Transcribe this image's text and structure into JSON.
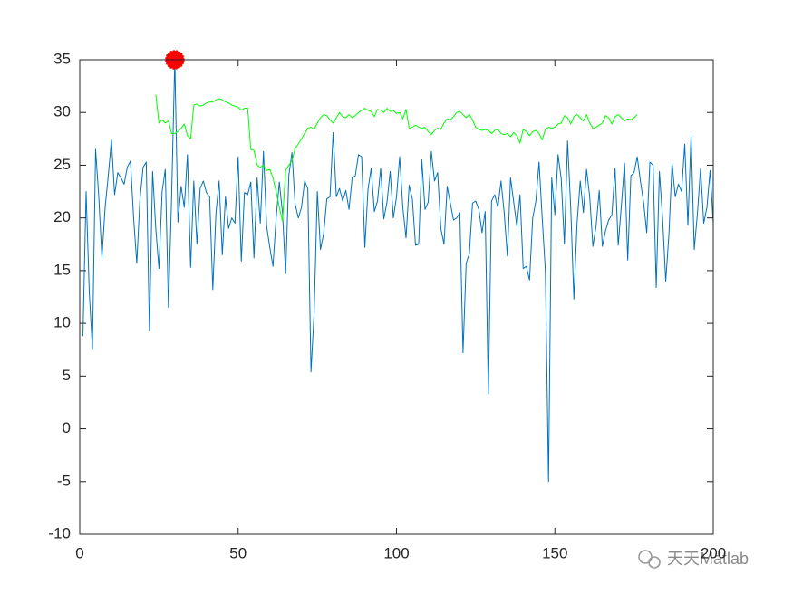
{
  "chart_data": {
    "type": "line",
    "xlim": [
      0,
      200
    ],
    "xticks": [
      0,
      50,
      100,
      150,
      200
    ],
    "ylim": [
      -10,
      35
    ],
    "yticks": [
      -10,
      -5,
      0,
      5,
      10,
      15,
      20,
      25,
      30,
      35
    ],
    "grid": false,
    "watermark": "天天Matlab",
    "series": [
      {
        "color": "#0072bd",
        "marker": false,
        "x": [
          1,
          2,
          3,
          4,
          5,
          6,
          7,
          8,
          9,
          10,
          11,
          12,
          13,
          14,
          15,
          16,
          17,
          18,
          19,
          20,
          21,
          22,
          23,
          24,
          25,
          26,
          27,
          28,
          29,
          30,
          31,
          32,
          33,
          34,
          35,
          36,
          37,
          38,
          39,
          40,
          41,
          42,
          43,
          44,
          45,
          46,
          47,
          48,
          49,
          50,
          51,
          52,
          53,
          54,
          55,
          56,
          57,
          58,
          59,
          60,
          61,
          62,
          63,
          64,
          65,
          66,
          67,
          68,
          69,
          70,
          71,
          72,
          73,
          74,
          75,
          76,
          77,
          78,
          79,
          80,
          81,
          82,
          83,
          84,
          85,
          86,
          87,
          88,
          89,
          90,
          91,
          92,
          93,
          94,
          95,
          96,
          97,
          98,
          99,
          100,
          101,
          102,
          103,
          104,
          105,
          106,
          107,
          108,
          109,
          110,
          111,
          112,
          113,
          114,
          115,
          116,
          117,
          118,
          119,
          120,
          121,
          122,
          123,
          124,
          125,
          126,
          127,
          128,
          129,
          130,
          131,
          132,
          133,
          134,
          135,
          136,
          137,
          138,
          139,
          140,
          141,
          142,
          143,
          144,
          145,
          146,
          147,
          148,
          149,
          150,
          151,
          152,
          153,
          154,
          155,
          156,
          157,
          158,
          159,
          160,
          161,
          162,
          163,
          164,
          165,
          166,
          167,
          168,
          169,
          170,
          171,
          172,
          173,
          174,
          175,
          176,
          177,
          178,
          179,
          180,
          181,
          182,
          183,
          184,
          185,
          186,
          187,
          188,
          189,
          190,
          191,
          192,
          193,
          194,
          195,
          196,
          197,
          198,
          199,
          200
        ],
        "values": [
          8.8,
          22.5,
          13.0,
          7.6,
          26.5,
          22.0,
          16.2,
          21.0,
          24.0,
          27.4,
          22.2,
          24.3,
          23.8,
          23.2,
          24.8,
          25.4,
          20.0,
          15.7,
          21.8,
          24.8,
          25.3,
          9.3,
          24.4,
          19.0,
          15.2,
          22.5,
          24.6,
          11.5,
          22.0,
          35.0,
          19.6,
          23.0,
          21.0,
          26.0,
          15.3,
          23.5,
          17.5,
          22.8,
          23.5,
          22.4,
          22.0,
          13.2,
          20.5,
          23.5,
          16.5,
          22.0,
          19.0,
          20.0,
          19.5,
          25.8,
          15.9,
          22.4,
          22.2,
          23.4,
          16.2,
          23.8,
          19.5,
          26.3,
          19.2,
          17.2,
          15.4,
          20.0,
          23.4,
          20.5,
          14.7,
          24.0,
          26.2,
          21.3,
          20.0,
          21.0,
          23.5,
          22.8,
          5.4,
          11.0,
          22.5,
          17.0,
          18.5,
          21.8,
          22.0,
          28.1,
          22.0,
          22.8,
          21.6,
          22.6,
          20.8,
          23.8,
          24.0,
          26.0,
          25.8,
          17.2,
          22.7,
          24.7,
          20.6,
          21.6,
          24.7,
          19.9,
          21.5,
          24.4,
          20.0,
          22.0,
          25.8,
          21.0,
          18.1,
          23.1,
          21.8,
          17.4,
          17.5,
          25.5,
          20.8,
          21.5,
          26.3,
          23.5,
          24.3,
          19.0,
          17.5,
          23.0,
          21.4,
          19.8,
          20.0,
          20.5,
          7.2,
          15.7,
          16.6,
          21.4,
          21.6,
          20.8,
          18.6,
          20.6,
          3.3,
          21.6,
          22.2,
          21.0,
          23.5,
          20.5,
          16.4,
          23.8,
          21.5,
          19.2,
          22.2,
          15.2,
          15.4,
          14.1,
          20.0,
          21.6,
          25.3,
          20.0,
          15.0,
          -5.0,
          23.8,
          20.3,
          26.0,
          23.7,
          17.5,
          27.3,
          21.0,
          12.3,
          19.5,
          23.5,
          20.5,
          24.6,
          22.0,
          17.3,
          19.2,
          22.6,
          17.3,
          18.8,
          19.8,
          20.3,
          24.7,
          17.4,
          21.2,
          25.2,
          16.0,
          24.0,
          24.3,
          25.8,
          23.5,
          21.5,
          18.6,
          25.3,
          25.0,
          13.4,
          24.4,
          20.0,
          14.0,
          18.4,
          25.2,
          22.0,
          23.2,
          22.5,
          27.0,
          19.3,
          27.9,
          17.0,
          20.4,
          24.7,
          19.5,
          21.0,
          24.5,
          19.5
        ]
      },
      {
        "color": "#00ff00",
        "marker": false,
        "x": [
          24,
          25,
          26,
          27,
          28,
          29,
          30,
          31,
          32,
          33,
          34,
          35,
          36,
          37,
          38,
          39,
          40,
          41,
          42,
          43,
          44,
          45,
          46,
          47,
          48,
          49,
          50,
          51,
          52,
          53,
          54,
          55,
          56,
          57,
          58,
          59,
          60,
          61,
          62,
          63,
          64,
          65,
          66,
          67,
          68,
          69,
          70,
          71,
          72,
          73,
          74,
          75,
          76,
          77,
          78,
          79,
          80,
          81,
          82,
          83,
          84,
          85,
          86,
          87,
          88,
          89,
          90,
          91,
          92,
          93,
          94,
          95,
          96,
          97,
          98,
          99,
          100,
          101,
          102,
          103,
          104,
          105,
          106,
          107,
          108,
          109,
          110,
          111,
          112,
          113,
          114,
          115,
          116,
          117,
          118,
          119,
          120,
          121,
          122,
          123,
          124,
          125,
          126,
          127,
          128,
          129,
          130,
          131,
          132,
          133,
          134,
          135,
          136,
          137,
          138,
          139,
          140,
          141,
          142,
          143,
          144,
          145,
          146,
          147,
          148,
          149,
          150,
          151,
          152,
          153,
          154,
          155,
          156,
          157,
          158,
          159,
          160,
          161,
          162,
          163,
          164,
          165,
          166,
          167,
          168,
          169,
          170,
          171,
          172,
          173,
          174,
          175,
          176
        ],
        "values": [
          31.7,
          29.0,
          29.3,
          29.0,
          29.2,
          28.0,
          28.0,
          28.2,
          28.5,
          28.9,
          27.8,
          27.5,
          30.7,
          30.8,
          30.6,
          30.7,
          30.9,
          31.0,
          31.0,
          31.2,
          31.3,
          31.2,
          31.0,
          30.9,
          30.7,
          30.6,
          30.5,
          30.2,
          30.4,
          30.4,
          26.5,
          26.4,
          25.0,
          24.8,
          25.0,
          24.5,
          24.6,
          23.8,
          22.5,
          21.0,
          19.7,
          24.5,
          25.0,
          25.4,
          26.6,
          27.0,
          27.5,
          28.0,
          28.5,
          28.6,
          28.4,
          29.0,
          29.5,
          29.8,
          29.7,
          29.3,
          29.0,
          29.5,
          30.0,
          29.6,
          29.5,
          29.8,
          29.5,
          29.7,
          30.0,
          30.2,
          30.4,
          30.2,
          30.1,
          29.6,
          30.3,
          30.2,
          30.0,
          30.4,
          30.1,
          30.2,
          29.9,
          30.0,
          29.4,
          30.3,
          28.5,
          28.6,
          28.8,
          28.6,
          28.5,
          28.6,
          28.2,
          27.9,
          28.3,
          28.5,
          28.4,
          29.0,
          29.4,
          29.3,
          29.6,
          30.0,
          30.1,
          29.8,
          29.5,
          29.8,
          29.3,
          28.6,
          28.4,
          28.3,
          28.4,
          28.3,
          28.0,
          28.3,
          28.4,
          28.0,
          27.9,
          28.0,
          27.7,
          28.1,
          27.8,
          27.1,
          28.4,
          28.2,
          27.8,
          28.2,
          28.3,
          28.0,
          27.4,
          28.4,
          28.6,
          28.5,
          28.6,
          28.9,
          29.0,
          29.7,
          29.5,
          28.9,
          29.6,
          29.8,
          29.5,
          29.2,
          29.8,
          29.0,
          28.5,
          28.6,
          28.8,
          29.0,
          29.7,
          29.5,
          28.9,
          29.6,
          29.8,
          29.5,
          29.2,
          29.4,
          29.3,
          29.5,
          29.8
        ]
      },
      {
        "color": "#ff0000",
        "marker": true,
        "x": [
          30
        ],
        "values": [
          35
        ]
      }
    ]
  }
}
